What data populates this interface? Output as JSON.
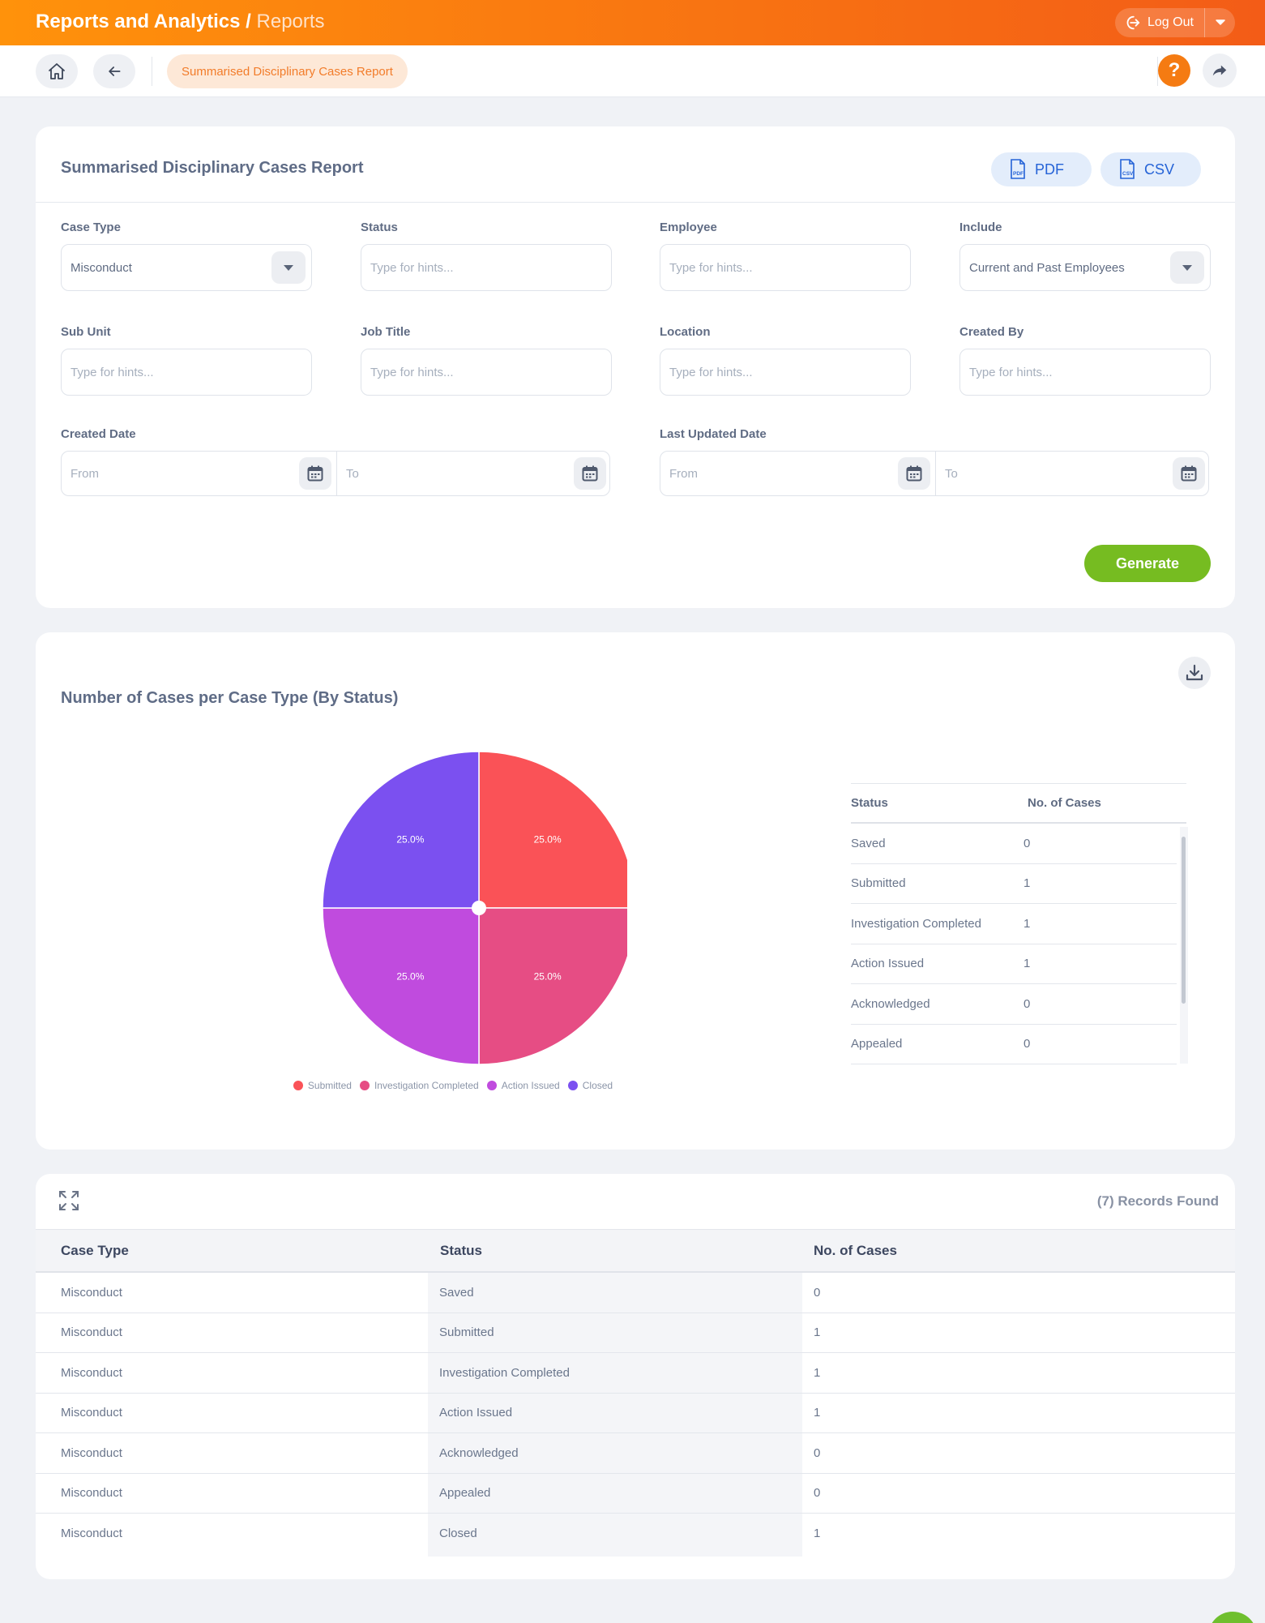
{
  "header": {
    "section": "Reports and Analytics /",
    "page": "Reports",
    "logout_label": "Log Out"
  },
  "nav": {
    "breadcrumb": "Summarised Disciplinary Cases Report",
    "help_label": "?"
  },
  "filters": {
    "title": "Summarised Disciplinary Cases Report",
    "pdf_label": "PDF",
    "csv_label": "CSV",
    "case_type": {
      "label": "Case Type",
      "value": "Misconduct"
    },
    "status": {
      "label": "Status",
      "placeholder": "Type for hints..."
    },
    "employee": {
      "label": "Employee",
      "placeholder": "Type for hints..."
    },
    "include": {
      "label": "Include",
      "value": "Current and Past Employees"
    },
    "sub_unit": {
      "label": "Sub Unit",
      "placeholder": "Type for hints..."
    },
    "job_title": {
      "label": "Job Title",
      "placeholder": "Type for hints..."
    },
    "location": {
      "label": "Location",
      "placeholder": "Type for hints..."
    },
    "created_by": {
      "label": "Created By",
      "placeholder": "Type for hints..."
    },
    "created_date": {
      "label": "Created Date",
      "from": "From",
      "to": "To"
    },
    "last_updated_date": {
      "label": "Last Updated Date",
      "from": "From",
      "to": "To"
    },
    "generate_label": "Generate"
  },
  "chart_section": {
    "title": "Number of Cases per Case Type (By Status)",
    "table_headers": [
      "Status",
      "No. of Cases"
    ],
    "table_rows": [
      {
        "status": "Saved",
        "count": "0"
      },
      {
        "status": "Submitted",
        "count": "1"
      },
      {
        "status": "Investigation Completed",
        "count": "1"
      },
      {
        "status": "Action Issued",
        "count": "1"
      },
      {
        "status": "Acknowledged",
        "count": "0"
      },
      {
        "status": "Appealed",
        "count": "0"
      }
    ]
  },
  "chart_data": {
    "type": "pie",
    "title": "Number of Cases per Case Type (By Status)",
    "labels": [
      "Submitted",
      "Investigation Completed",
      "Action Issued",
      "Closed"
    ],
    "values": [
      1,
      1,
      1,
      1
    ],
    "percent_labels": [
      "25.0%",
      "25.0%",
      "25.0%",
      "25.0%"
    ],
    "colors": [
      "#fa5257",
      "#e64d84",
      "#c04bde",
      "#7b50f0"
    ],
    "legend_position": "bottom"
  },
  "records": {
    "count_label": "(7) Records Found",
    "headers": [
      "Case Type",
      "Status",
      "No. of Cases"
    ],
    "rows": [
      [
        "Misconduct",
        "Saved",
        "0"
      ],
      [
        "Misconduct",
        "Submitted",
        "1"
      ],
      [
        "Misconduct",
        "Investigation Completed",
        "1"
      ],
      [
        "Misconduct",
        "Action Issued",
        "1"
      ],
      [
        "Misconduct",
        "Acknowledged",
        "0"
      ],
      [
        "Misconduct",
        "Appealed",
        "0"
      ],
      [
        "Misconduct",
        "Closed",
        "1"
      ]
    ]
  },
  "colors": {
    "brand_orange": "#f57b12",
    "generate_green": "#76bc21",
    "export_blue": "#2563d7"
  }
}
